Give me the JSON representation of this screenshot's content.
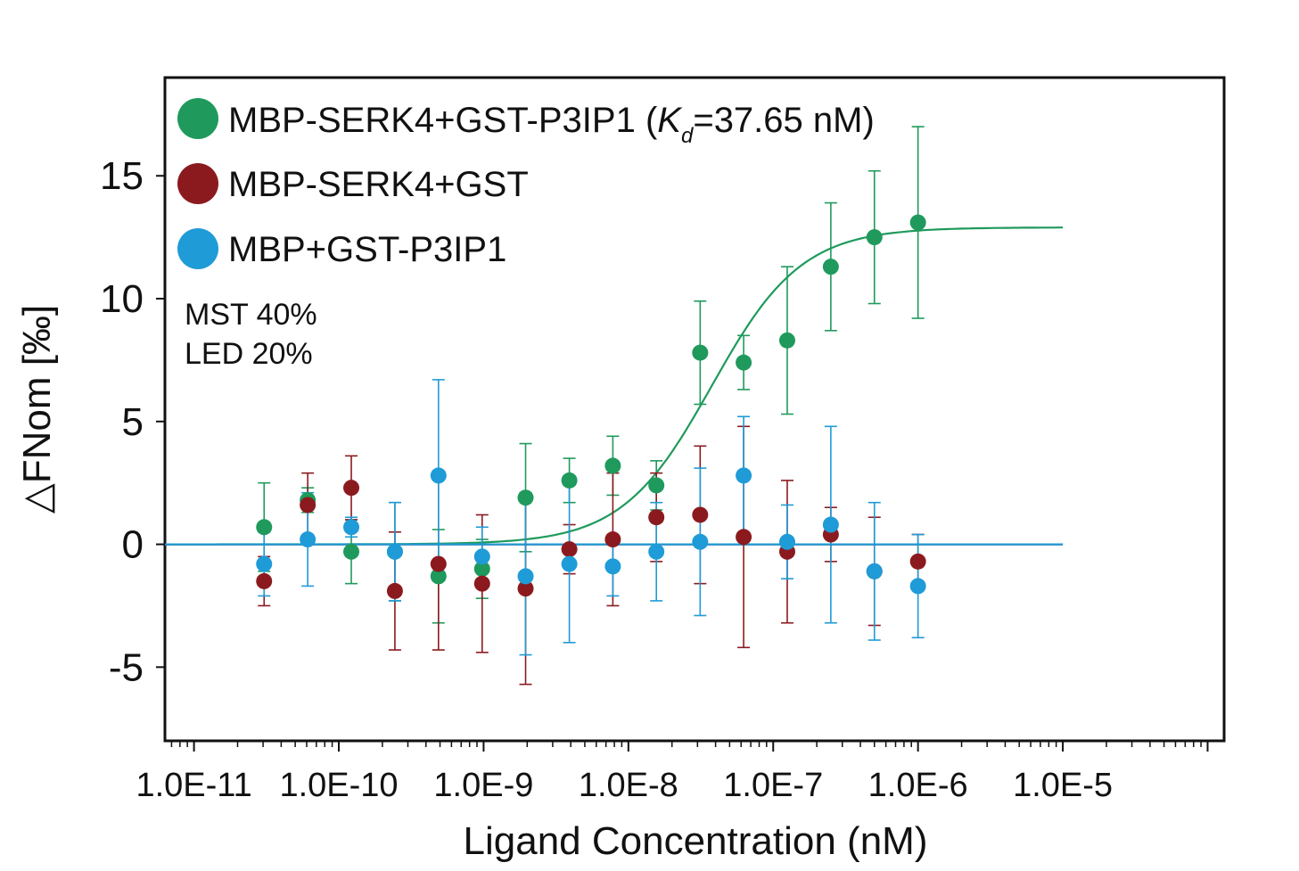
{
  "chart_data": {
    "type": "scatter",
    "xscale": "log",
    "xlim": [
      6.3e-12,
      0.00013
    ],
    "ylim": [
      -8,
      19
    ],
    "xticks": [
      1e-11,
      1e-10,
      1e-09,
      1e-08,
      1e-07,
      1e-06,
      1e-05
    ],
    "xtick_labels": [
      "1.0E-11",
      "1.0E-10",
      "1.0E-9",
      "1.0E-8",
      "1.0E-7",
      "1.0E-6",
      "1.0E-5"
    ],
    "yticks": [
      15,
      10,
      5,
      0,
      -5
    ],
    "ytick_labels": [
      "15",
      "10",
      "5",
      "0",
      "-5"
    ],
    "xlabel": "Ligand Concentration (nM)",
    "ylabel": "△FNom [‰]",
    "grid": false,
    "legend_position": "top-left",
    "annotation_lines": [
      "MST 40%",
      "LED 20%"
    ],
    "x": [
      3.05e-11,
      6.1e-11,
      1.22e-10,
      2.44e-10,
      4.88e-10,
      9.77e-10,
      1.95e-09,
      3.91e-09,
      7.81e-09,
      1.56e-08,
      3.13e-08,
      6.25e-08,
      1.25e-07,
      2.5e-07,
      5e-07,
      1e-06
    ],
    "series": [
      {
        "name": "MBP-SERK4+GST-P3IP1",
        "legend_prefix": "MBP-SERK4+GST-P3IP1 (",
        "legend_k": "K",
        "legend_sub": "d",
        "legend_suffix": "=37.65 nM)",
        "color": "#1f9a5c",
        "y": [
          0.7,
          1.8,
          -0.3,
          -0.3,
          -1.3,
          -1.0,
          1.9,
          2.6,
          3.2,
          2.4,
          7.8,
          7.4,
          8.3,
          11.3,
          12.5,
          13.1
        ],
        "err": [
          1.8,
          0.5,
          1.3,
          2.0,
          1.9,
          1.2,
          2.2,
          0.9,
          1.2,
          1.0,
          2.1,
          1.1,
          3.0,
          2.6,
          2.7,
          3.9
        ],
        "fit": {
          "bottom": 0.0,
          "top": 12.9,
          "kd": 3.765e-08,
          "hill": 1.4
        }
      },
      {
        "name": "MBP-SERK4+GST",
        "color": "#8b1a1f",
        "y": [
          -1.5,
          1.6,
          2.3,
          -1.9,
          -0.8,
          -1.6,
          -1.8,
          -0.2,
          0.2,
          1.1,
          1.2,
          0.3,
          -0.3,
          0.4,
          -1.1,
          -0.7
        ],
        "err": [
          1.0,
          1.3,
          1.3,
          2.4,
          3.5,
          2.8,
          3.9,
          1.0,
          2.7,
          1.8,
          2.8,
          4.5,
          2.9,
          1.1,
          2.2,
          1.1
        ],
        "fit": {
          "constant": 0.0
        }
      },
      {
        "name": "MBP+GST-P3IP1",
        "color": "#1f9bd7",
        "y": [
          -0.8,
          0.2,
          0.7,
          -0.3,
          2.8,
          -0.5,
          -1.3,
          -0.8,
          -0.9,
          -0.3,
          0.1,
          2.8,
          0.1,
          0.8,
          -1.1,
          -1.7
        ],
        "err": [
          1.3,
          1.9,
          0.4,
          2.0,
          3.9,
          1.2,
          3.2,
          3.2,
          1.2,
          2.0,
          3.0,
          2.4,
          1.5,
          4.0,
          2.8,
          2.1
        ],
        "fit": {
          "constant": 0.0
        }
      }
    ]
  }
}
